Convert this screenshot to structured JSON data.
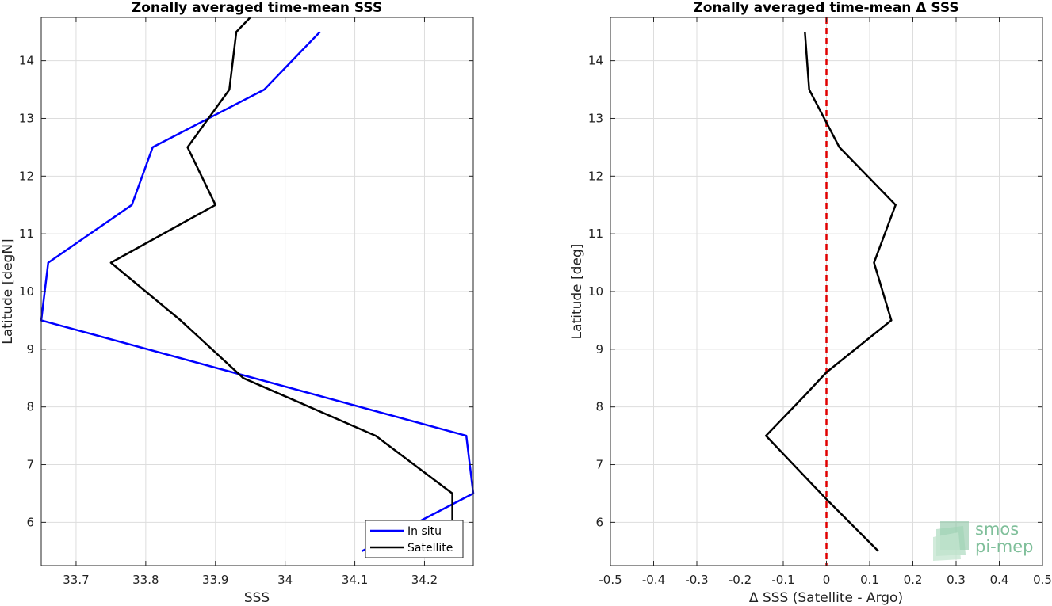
{
  "chart_data": [
    {
      "type": "line",
      "title": "Zonally averaged time-mean SSS",
      "xlabel": "SSS",
      "ylabel": "Latitude [degN]",
      "xlim": [
        33.65,
        34.27
      ],
      "ylim": [
        5.25,
        14.75
      ],
      "xticks": [
        "33.7",
        "33.8",
        "33.9",
        "34",
        "34.1",
        "34.2"
      ],
      "yticks": [
        "6",
        "7",
        "8",
        "9",
        "10",
        "11",
        "12",
        "13",
        "14"
      ],
      "grid": true,
      "legend_position": "bottom-right",
      "series": [
        {
          "name": "In situ",
          "color": "#0000ff",
          "x": [
            34.11,
            34.27,
            34.26,
            33.65,
            33.66,
            33.78,
            33.81,
            33.97,
            34.05
          ],
          "y": [
            5.5,
            6.5,
            7.5,
            9.5,
            10.5,
            11.5,
            12.5,
            13.5,
            14.5
          ]
        },
        {
          "name": "Satellite",
          "color": "#000000",
          "x": [
            34.24,
            34.24,
            34.13,
            33.94,
            33.85,
            33.75,
            33.9,
            33.86,
            33.92,
            33.93,
            33.95
          ],
          "y": [
            5.5,
            6.5,
            7.5,
            8.5,
            9.5,
            10.5,
            11.5,
            12.5,
            13.5,
            14.5,
            14.75
          ]
        }
      ]
    },
    {
      "type": "line",
      "title": "Zonally averaged time-mean Δ SSS",
      "xlabel": "Δ SSS (Satellite - Argo)",
      "ylabel": "Latitude [deg]",
      "xlim": [
        -0.5,
        0.5
      ],
      "ylim": [
        5.25,
        14.75
      ],
      "xticks": [
        "-0.5",
        "-0.4",
        "-0.3",
        "-0.2",
        "-0.1",
        "0",
        "0.1",
        "0.2",
        "0.3",
        "0.4",
        "0.5"
      ],
      "yticks": [
        "6",
        "7",
        "8",
        "9",
        "10",
        "11",
        "12",
        "13",
        "14"
      ],
      "grid": true,
      "reference_line": {
        "x": 0,
        "color": "#e00000",
        "style": "dashed"
      },
      "series": [
        {
          "color": "#000000",
          "x": [
            0.12,
            0.0,
            -0.14,
            -0.05,
            0.0,
            0.15,
            0.11,
            0.16,
            0.03,
            -0.04,
            -0.05
          ],
          "y": [
            5.5,
            6.4,
            7.5,
            8.2,
            8.6,
            9.5,
            10.5,
            11.5,
            12.5,
            13.5,
            14.5
          ]
        }
      ]
    }
  ],
  "logo": {
    "line1": "smos",
    "line2": "pi-mep",
    "color": "#7fbf9a"
  }
}
